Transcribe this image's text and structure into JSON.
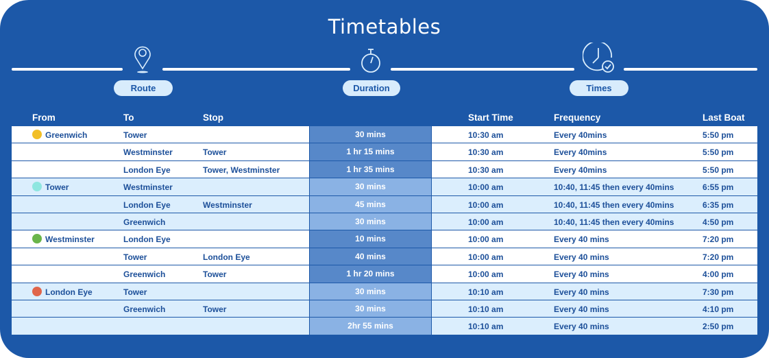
{
  "title": "Timetables",
  "steps": [
    {
      "label": "Route",
      "icon": "map-pin-icon"
    },
    {
      "label": "Duration",
      "icon": "stopwatch-icon"
    },
    {
      "label": "Times",
      "icon": "clock-check-icon"
    }
  ],
  "headers": {
    "from": "From",
    "to": "To",
    "stop": "Stop",
    "start": "Start Time",
    "frequency": "Frequency",
    "last": "Last Boat"
  },
  "rows": [
    {
      "from": "Greenwich",
      "dot": "#f2bf27",
      "to": "Tower",
      "stop": "",
      "duration": "30 mins",
      "start": "10:30 am",
      "frequency": "Every 40mins",
      "last": "5:50 pm",
      "shade": "w"
    },
    {
      "from": "",
      "to": "Westminster",
      "stop": "Tower",
      "duration": "1 hr 15 mins",
      "start": "10:30 am",
      "frequency": "Every 40mins",
      "last": "5:50 pm",
      "shade": "w"
    },
    {
      "from": "",
      "to": "London Eye",
      "stop": "Tower, Westminster",
      "duration": "1 hr 35 mins",
      "start": "10:30 am",
      "frequency": "Every 40mins",
      "last": "5:50 pm",
      "shade": "w"
    },
    {
      "from": "Tower",
      "dot": "#8ee6e0",
      "to": "Westminster",
      "stop": "",
      "duration": "30 mins",
      "start": "10:00 am",
      "frequency": "10:40, 11:45 then every 40mins",
      "last": "6:55 pm",
      "shade": "l"
    },
    {
      "from": "",
      "to": "London Eye",
      "stop": "Westminster",
      "duration": "45 mins",
      "start": "10:00 am",
      "frequency": "10:40, 11:45 then every 40mins",
      "last": "6:35 pm",
      "shade": "l"
    },
    {
      "from": "",
      "to": "Greenwich",
      "stop": "",
      "duration": "30 mins",
      "start": "10:00 am",
      "frequency": "10:40, 11:45 then every 40mins",
      "last": "4:50 pm",
      "shade": "l"
    },
    {
      "from": "Westminster",
      "dot": "#6ab54a",
      "to": "London Eye",
      "stop": "",
      "duration": "10 mins",
      "start": "10:00 am",
      "frequency": "Every 40 mins",
      "last": "7:20 pm",
      "shade": "w"
    },
    {
      "from": "",
      "to": "Tower",
      "stop": "London Eye",
      "duration": "40 mins",
      "start": "10:00 am",
      "frequency": "Every 40 mins",
      "last": "7:20 pm",
      "shade": "w"
    },
    {
      "from": "",
      "to": "Greenwich",
      "stop": "Tower",
      "duration": "1 hr 20 mins",
      "start": "10:00 am",
      "frequency": "Every 40 mins",
      "last": "4:00 pm",
      "shade": "w"
    },
    {
      "from": "London Eye",
      "dot": "#e0654a",
      "to": "Tower",
      "stop": "",
      "duration": "30 mins",
      "start": "10:10 am",
      "frequency": "Every 40 mins",
      "last": "7:30 pm",
      "shade": "l"
    },
    {
      "from": "",
      "to": "Greenwich",
      "stop": "Tower",
      "duration": "30 mins",
      "start": "10:10 am",
      "frequency": "Every 40 mins",
      "last": "4:10 pm",
      "shade": "l"
    },
    {
      "from": "",
      "to": "",
      "stop": "",
      "duration": "2hr 55 mins",
      "start": "10:10 am",
      "frequency": "Every 40 mins",
      "last": "2:50 pm",
      "shade": "l"
    }
  ]
}
